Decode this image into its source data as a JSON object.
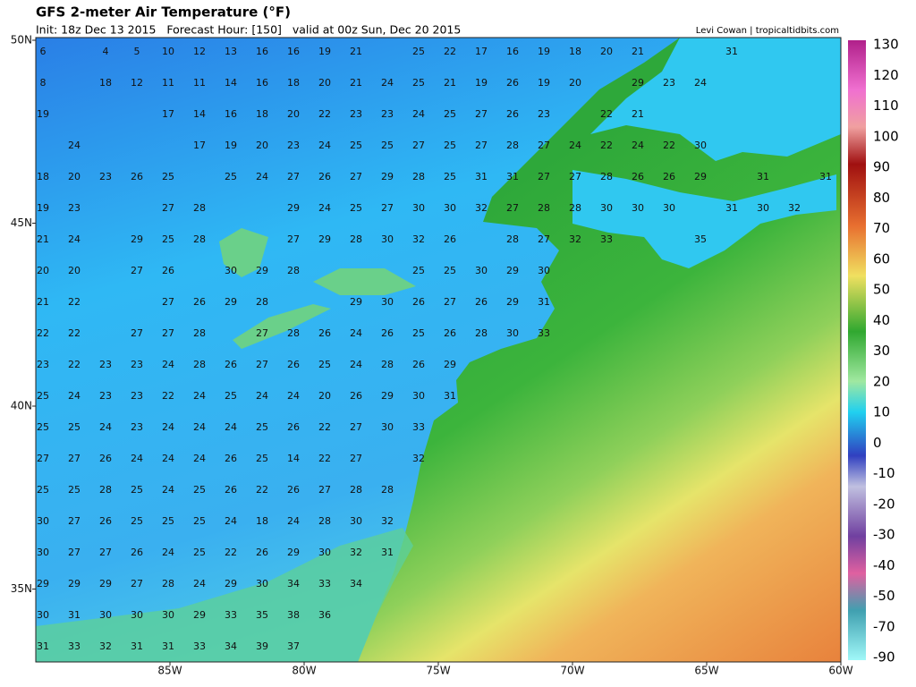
{
  "header": {
    "title": "GFS 2-meter Air Temperature (°F)",
    "subtitle": "Init: 18z Dec 13 2015   Forecast Hour: [150]   valid at 00z Sun, Dec 20 2015",
    "credit": "Levi Cowan | tropicaltidbits.com"
  },
  "map": {
    "lat_labels": [
      "50N",
      "45N",
      "40N",
      "35N"
    ],
    "lon_labels": [
      "85W",
      "80W",
      "75W",
      "70W",
      "65W",
      "60W"
    ],
    "stations": [
      [
        6,
        null,
        4,
        5,
        10,
        12,
        13,
        16,
        16,
        19,
        21,
        null,
        25,
        22,
        17,
        16,
        19,
        18,
        20,
        21,
        null,
        null,
        31,
        null,
        null,
        null
      ],
      [
        8,
        null,
        18,
        12,
        11,
        11,
        14,
        16,
        18,
        20,
        21,
        24,
        25,
        21,
        19,
        26,
        19,
        20,
        null,
        29,
        23,
        24,
        null,
        null,
        null,
        null
      ],
      [
        19,
        null,
        null,
        null,
        17,
        14,
        16,
        18,
        20,
        22,
        23,
        23,
        24,
        25,
        27,
        26,
        23,
        null,
        22,
        21,
        null,
        null,
        null,
        null,
        null,
        null
      ],
      [
        null,
        24,
        null,
        null,
        null,
        17,
        19,
        20,
        23,
        24,
        25,
        25,
        27,
        25,
        27,
        28,
        27,
        24,
        22,
        24,
        22,
        30,
        null,
        null,
        null,
        null
      ],
      [
        18,
        20,
        23,
        26,
        25,
        null,
        25,
        24,
        27,
        26,
        27,
        29,
        28,
        25,
        31,
        31,
        27,
        27,
        28,
        26,
        26,
        29,
        null,
        31,
        null,
        31
      ],
      [
        19,
        23,
        null,
        null,
        27,
        28,
        null,
        null,
        29,
        24,
        25,
        27,
        30,
        30,
        32,
        27,
        28,
        28,
        30,
        30,
        30,
        null,
        31,
        30,
        32,
        null
      ],
      [
        21,
        24,
        null,
        29,
        25,
        28,
        null,
        null,
        27,
        29,
        28,
        30,
        32,
        26,
        null,
        28,
        27,
        32,
        33,
        null,
        null,
        35,
        null,
        null,
        null,
        null
      ],
      [
        20,
        20,
        null,
        27,
        26,
        null,
        30,
        29,
        28,
        null,
        null,
        null,
        25,
        25,
        30,
        29,
        30,
        null,
        null,
        null,
        null,
        null,
        null,
        null,
        null,
        null
      ],
      [
        21,
        22,
        null,
        null,
        27,
        26,
        29,
        28,
        null,
        null,
        29,
        30,
        26,
        27,
        26,
        29,
        31,
        null,
        null,
        null,
        null,
        null,
        null,
        null,
        null,
        null
      ],
      [
        22,
        22,
        null,
        27,
        27,
        28,
        null,
        27,
        28,
        26,
        24,
        26,
        25,
        26,
        28,
        30,
        33,
        null,
        null,
        null,
        null,
        null,
        null,
        null,
        null,
        null
      ],
      [
        23,
        22,
        23,
        23,
        24,
        28,
        26,
        27,
        26,
        25,
        24,
        28,
        26,
        29,
        null,
        null,
        null,
        null,
        null,
        null,
        null,
        null,
        null,
        null,
        null,
        null
      ],
      [
        25,
        24,
        23,
        23,
        22,
        24,
        25,
        24,
        24,
        20,
        26,
        29,
        30,
        31,
        null,
        null,
        null,
        null,
        null,
        null,
        null,
        null,
        null,
        null,
        null,
        null
      ],
      [
        25,
        25,
        24,
        23,
        24,
        24,
        24,
        25,
        26,
        22,
        27,
        30,
        33,
        null,
        null,
        null,
        null,
        null,
        null,
        null,
        null,
        null,
        null,
        null,
        null,
        null
      ],
      [
        27,
        27,
        26,
        24,
        24,
        24,
        26,
        25,
        14,
        22,
        27,
        null,
        32,
        null,
        null,
        null,
        null,
        null,
        null,
        null,
        null,
        null,
        null,
        null,
        null,
        null
      ],
      [
        25,
        25,
        28,
        25,
        24,
        25,
        26,
        22,
        26,
        27,
        28,
        28,
        null,
        null,
        null,
        null,
        null,
        null,
        null,
        null,
        null,
        null,
        null,
        null,
        null,
        null
      ],
      [
        30,
        27,
        26,
        25,
        25,
        25,
        24,
        18,
        24,
        28,
        30,
        32,
        null,
        null,
        null,
        null,
        null,
        null,
        null,
        null,
        null,
        null,
        null,
        null,
        null,
        null
      ],
      [
        30,
        27,
        27,
        26,
        24,
        25,
        22,
        26,
        29,
        30,
        32,
        31,
        null,
        null,
        null,
        null,
        null,
        null,
        null,
        null,
        null,
        null,
        null,
        null,
        null,
        null
      ],
      [
        29,
        29,
        29,
        27,
        28,
        24,
        29,
        30,
        34,
        33,
        34,
        null,
        null,
        null,
        null,
        null,
        null,
        null,
        null,
        null,
        null,
        null,
        null,
        null,
        null,
        null
      ],
      [
        30,
        31,
        30,
        30,
        30,
        29,
        33,
        35,
        38,
        36,
        null,
        null,
        null,
        null,
        null,
        null,
        null,
        null,
        null,
        null,
        null,
        null,
        null,
        null,
        null,
        null
      ],
      [
        31,
        33,
        32,
        31,
        31,
        33,
        34,
        39,
        37,
        null,
        null,
        null,
        null,
        null,
        null,
        null,
        null,
        null,
        null,
        null,
        null,
        null,
        null,
        null,
        null,
        null
      ]
    ]
  },
  "colorbar": {
    "ticks": [
      130,
      120,
      110,
      100,
      90,
      80,
      70,
      60,
      50,
      40,
      30,
      20,
      10,
      0,
      -10,
      -20,
      -30,
      -40,
      -50,
      -70,
      -90
    ]
  }
}
